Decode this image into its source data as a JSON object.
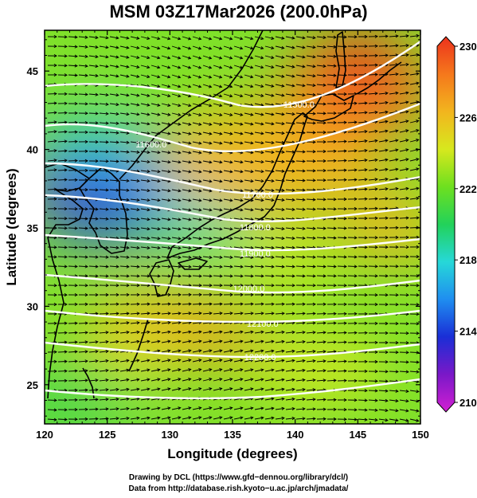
{
  "title": "MSM 03Z17Mar2026 (200.0hPa)",
  "map": {
    "x_axis": {
      "label": "Longitude (degrees)",
      "range": [
        120,
        150
      ],
      "ticks": [
        "120",
        "125",
        "130",
        "135",
        "140",
        "145",
        "150"
      ]
    },
    "y_axis": {
      "label": "Latitude  (degrees)",
      "range": [
        22.5,
        47.6
      ],
      "ticks": [
        "25",
        "30",
        "35",
        "40",
        "45"
      ]
    },
    "colorbar": {
      "range": [
        210,
        230
      ],
      "ticks": [
        "210",
        "214",
        "218",
        "222",
        "226",
        "230"
      ],
      "colors": [
        "#d21fd2",
        "#7a18c8",
        "#1a2ed6",
        "#1f8ef0",
        "#26d8d8",
        "#22d25a",
        "#6ee01f",
        "#d7e81e",
        "#f2b51e",
        "#f5781c",
        "#ec321c"
      ]
    },
    "contours": [
      {
        "label": "11500.0",
        "lon": 140.3
      },
      {
        "label": "11600.0",
        "lon": 128.5
      },
      {
        "label": "11700.0",
        "lon": 137.0
      },
      {
        "label": "11800.0",
        "lon": 136.8
      },
      {
        "label": "11900.0",
        "lon": 136.8
      },
      {
        "label": "12000.0",
        "lon": 136.3
      },
      {
        "label": "12100.0",
        "lon": 137.4
      },
      {
        "label": "12200.0",
        "lon": 137.2
      }
    ],
    "temperature_centers": [
      {
        "lon": 145.0,
        "lat": 46.0,
        "value": 230
      },
      {
        "lon": 121.0,
        "lat": 38.5,
        "value": 211
      },
      {
        "lon": 126.0,
        "lat": 36.0,
        "value": 214
      }
    ]
  },
  "credits": {
    "line1": "Drawing by DCL (https://www.gfd−dennou.org/library/dcl/)",
    "line2": "Data from http://database.rish.kyoto−u.ac.jp/arch/jmadata/"
  }
}
